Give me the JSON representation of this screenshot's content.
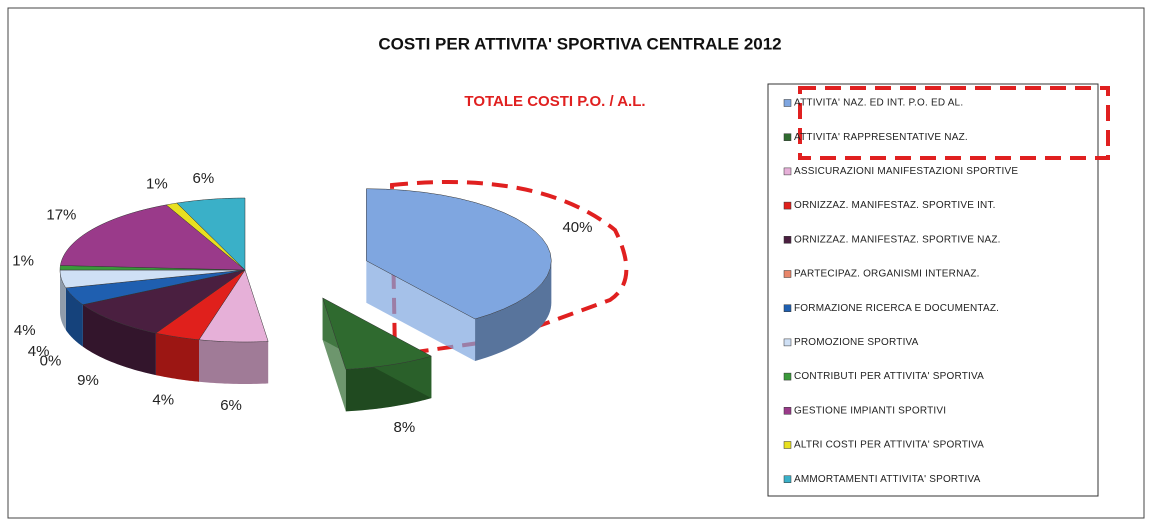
{
  "chart_data": {
    "type": "pie",
    "title": "COSTI PER ATTIVITA' SPORTIVA CENTRALE 2012",
    "annotation": "TOTALE COSTI P.O. / A.L.",
    "categories": [
      "ATTIVITA' NAZ. ED INT. P.O. ED AL.",
      "ATTIVITA' RAPPRESENTATIVE NAZ.",
      "ASSICURAZIONI MANIFESTAZIONI SPORTIVE",
      "ORNIZZAZ. MANIFESTAZ. SPORTIVE INT.",
      "ORNIZZAZ. MANIFESTAZ. SPORTIVE NAZ.",
      "PARTECIPAZ. ORGANISMI INTERNAZ.",
      "FORMAZIONE RICERCA E DOCUMENTAZ.",
      "PROMOZIONE SPORTIVA",
      "CONTRIBUTI PER ATTIVITA' SPORTIVA",
      "GESTIONE IMPIANTI SPORTIVI",
      "ALTRI COSTI PER ATTIVITA' SPORTIVA",
      "AMMORTAMENTI ATTIVITA' SPORTIVA"
    ],
    "values": [
      40,
      8,
      6,
      4,
      9,
      0,
      4,
      4,
      1,
      17,
      1,
      6
    ],
    "value_labels": [
      "40%",
      "8%",
      "6%",
      "4%",
      "9%",
      "0%",
      "4%",
      "4%",
      "1%",
      "17%",
      "1%",
      "6%"
    ],
    "colors": [
      "#7fa6e0",
      "#2f6a2f",
      "#e6b0d8",
      "#e0201c",
      "#4a1f40",
      "#e8866a",
      "#1f5fb0",
      "#cfe0f5",
      "#3a9a3a",
      "#9a3a8a",
      "#e8e020",
      "#3ab0c8"
    ],
    "legend": "right"
  }
}
